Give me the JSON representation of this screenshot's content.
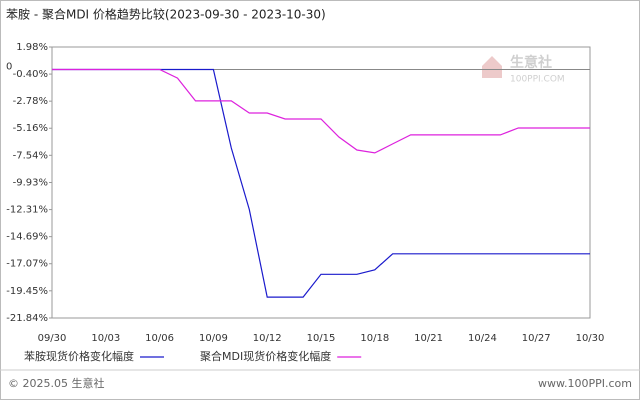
{
  "chart_data": {
    "type": "line",
    "title": "苯胺 - 聚合MDI 价格趋势比较(2023-09-30 - 2023-10-30)",
    "categories": [
      "09/30",
      null,
      null,
      "10/03",
      null,
      null,
      "10/06",
      null,
      null,
      "10/09",
      null,
      null,
      "10/12",
      null,
      null,
      "10/15",
      null,
      null,
      "10/18",
      null,
      null,
      "10/21",
      null,
      null,
      "10/24",
      null,
      null,
      "10/27",
      null,
      null,
      "10/30"
    ],
    "ylim": [
      -21.84,
      1.98
    ],
    "yticks": [
      {
        "value": 1.98,
        "label": "1.98%"
      },
      {
        "value": -0.4,
        "label": "-0.40%"
      },
      {
        "value": -2.78,
        "label": "-2.78%"
      },
      {
        "value": -5.16,
        "label": "-5.16%"
      },
      {
        "value": -7.54,
        "label": "-7.54%"
      },
      {
        "value": -9.93,
        "label": "-9.93%"
      },
      {
        "value": -12.31,
        "label": "-12.31%"
      },
      {
        "value": -14.69,
        "label": "-14.69%"
      },
      {
        "value": -17.07,
        "label": "-17.07%"
      },
      {
        "value": -19.45,
        "label": "-19.45%"
      },
      {
        "value": -21.84,
        "label": "-21.84%"
      }
    ],
    "zero_line": {
      "value": 0,
      "label": "0"
    },
    "series": [
      {
        "name": "苯胺现货价格变化幅度",
        "color": "#1a1acc",
        "values": [
          0,
          0,
          0,
          0,
          0,
          0,
          0,
          0,
          0,
          0,
          -6.9,
          -12.3,
          -20.0,
          -20.0,
          -20.0,
          -18.0,
          -18.0,
          -18.0,
          -17.6,
          -16.2,
          -16.2,
          -16.2,
          -16.2,
          -16.2,
          -16.2,
          -16.2,
          -16.2,
          -16.2,
          -16.2,
          -16.2,
          -16.2
        ]
      },
      {
        "name": "聚合MDI现货价格变化幅度",
        "color": "#dd22dd",
        "values": [
          0,
          0,
          0,
          0,
          0,
          0,
          0,
          -0.75,
          -2.76,
          -2.76,
          -2.76,
          -3.82,
          -3.82,
          -4.35,
          -4.35,
          -4.35,
          -5.93,
          -7.07,
          -7.33,
          -6.54,
          -5.75,
          -5.75,
          -5.75,
          -5.75,
          -5.75,
          -5.75,
          -5.14,
          -5.14,
          -5.14,
          -5.14,
          -5.14
        ]
      }
    ]
  },
  "watermark": {
    "name": "生意社",
    "site": "100PPI.COM"
  },
  "footer": {
    "copyright": "© 2025.05 生意社",
    "site": "www.100PPI.com"
  }
}
